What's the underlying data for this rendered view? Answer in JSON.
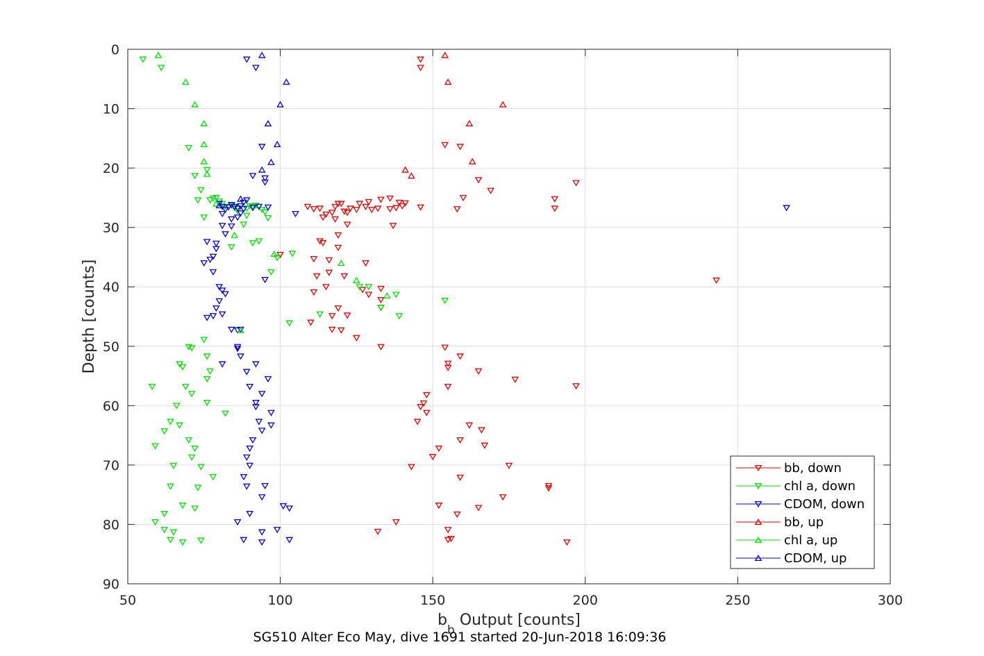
{
  "chart_data": {
    "type": "scatter",
    "title": "",
    "caption": "SG510 Alter Eco May, dive 1691 started 20-Jun-2018 16:09:36",
    "xlabel_main": "b",
    "xlabel_sub": "b",
    "xlabel_rest": " Output [counts]",
    "ylabel": "Depth [counts]",
    "xlim": [
      50,
      300
    ],
    "ylim": [
      0,
      90
    ],
    "y_reversed": true,
    "grid": true,
    "xticks": [
      "50",
      "100",
      "150",
      "200",
      "250",
      "300"
    ],
    "yticks": [
      "0",
      "10",
      "20",
      "30",
      "40",
      "50",
      "60",
      "70",
      "80",
      "90"
    ],
    "legend_position": "bottom-right",
    "colors": {
      "red": "#dd0000",
      "green": "#00dd00",
      "blue": "#0000cc"
    },
    "series": [
      {
        "name": "bb, down",
        "marker": "down-triangle",
        "color": "#dd0000",
        "points": [
          [
            146,
            1.7
          ],
          [
            146,
            3.1
          ],
          [
            154,
            16.1
          ],
          [
            159,
            16.4
          ],
          [
            165,
            22
          ],
          [
            169,
            23.8
          ],
          [
            160,
            25
          ],
          [
            158,
            26.9
          ],
          [
            197,
            22.5
          ],
          [
            190,
            25.2
          ],
          [
            190,
            26.8
          ],
          [
            146,
            26.6
          ],
          [
            140,
            26.4
          ],
          [
            141,
            25.9
          ],
          [
            139,
            25.8
          ],
          [
            138,
            26.7
          ],
          [
            136,
            26.9
          ],
          [
            136,
            25.1
          ],
          [
            133,
            25.3
          ],
          [
            132,
            26.8
          ],
          [
            130,
            27
          ],
          [
            129,
            25.7
          ],
          [
            128,
            26.5
          ],
          [
            126,
            26
          ],
          [
            125,
            27
          ],
          [
            123,
            26.8
          ],
          [
            122,
            27.5
          ],
          [
            121,
            27.3
          ],
          [
            120,
            26
          ],
          [
            119,
            26
          ],
          [
            118,
            26.5
          ],
          [
            117,
            27.5
          ],
          [
            115,
            27.8
          ],
          [
            114,
            28.3
          ],
          [
            113,
            26.8
          ],
          [
            111,
            26.9
          ],
          [
            109,
            26.5
          ],
          [
            118,
            28.6
          ],
          [
            122,
            29.5
          ],
          [
            119,
            31.3
          ],
          [
            137,
            29.7
          ],
          [
            113,
            32.3
          ],
          [
            114,
            32.6
          ],
          [
            119,
            33.4
          ],
          [
            100,
            34.6
          ],
          [
            111,
            35.3
          ],
          [
            116,
            35.5
          ],
          [
            128,
            36
          ],
          [
            112,
            38.2
          ],
          [
            116,
            37.6
          ],
          [
            121,
            38.2
          ],
          [
            115,
            40
          ],
          [
            111,
            40.9
          ],
          [
            127,
            40.5
          ],
          [
            133,
            40.3
          ],
          [
            129,
            41.3
          ],
          [
            133,
            42.2
          ],
          [
            133,
            43.5
          ],
          [
            119,
            43.6
          ],
          [
            117,
            44.9
          ],
          [
            122,
            44.8
          ],
          [
            110,
            46
          ],
          [
            117,
            47.2
          ],
          [
            120,
            47.3
          ],
          [
            125,
            48.6
          ],
          [
            133,
            50.1
          ],
          [
            154,
            50.2
          ],
          [
            159,
            51.7
          ],
          [
            155,
            52.9
          ],
          [
            155,
            53.6
          ],
          [
            165,
            54.2
          ],
          [
            177,
            55.6
          ],
          [
            197,
            56.7
          ],
          [
            155,
            56.8
          ],
          [
            148,
            58.2
          ],
          [
            147,
            59.6
          ],
          [
            146,
            60.2
          ],
          [
            148,
            61.2
          ],
          [
            145,
            62.7
          ],
          [
            162,
            63.3
          ],
          [
            166,
            64.1
          ],
          [
            159,
            65.8
          ],
          [
            152,
            67.2
          ],
          [
            167,
            66.7
          ],
          [
            150,
            68.6
          ],
          [
            175,
            70.1
          ],
          [
            143,
            70.3
          ],
          [
            159,
            72.1
          ],
          [
            188,
            73.5
          ],
          [
            188,
            73.9
          ],
          [
            173,
            75.4
          ],
          [
            152,
            76.8
          ],
          [
            165,
            77.2
          ],
          [
            158,
            78.3
          ],
          [
            138,
            79.6
          ],
          [
            155,
            80.9
          ],
          [
            132,
            81.2
          ],
          [
            156,
            82.4
          ],
          [
            155,
            82.6
          ],
          [
            194,
            83
          ],
          [
            243,
            38.9
          ]
        ]
      },
      {
        "name": "chl a, down",
        "marker": "down-triangle",
        "color": "#00dd00",
        "points": [
          [
            55,
            1.7
          ],
          [
            61,
            3.1
          ],
          [
            70,
            16.6
          ],
          [
            76,
            20.3
          ],
          [
            72,
            21.3
          ],
          [
            74,
            23.7
          ],
          [
            73,
            25.4
          ],
          [
            77,
            25.4
          ],
          [
            78,
            25.1
          ],
          [
            79,
            25
          ],
          [
            80,
            25.6
          ],
          [
            81,
            26
          ],
          [
            82,
            26.5
          ],
          [
            84,
            26.3
          ],
          [
            85,
            26.7
          ],
          [
            86,
            27.2
          ],
          [
            87,
            26.4
          ],
          [
            89,
            26.8
          ],
          [
            90,
            26.4
          ],
          [
            91,
            26.5
          ],
          [
            92,
            26.3
          ],
          [
            94,
            27
          ],
          [
            95,
            27.4
          ],
          [
            96,
            28.4
          ],
          [
            89,
            28
          ],
          [
            88,
            29.5
          ],
          [
            75,
            28.3
          ],
          [
            91,
            32.6
          ],
          [
            93,
            32.3
          ],
          [
            84,
            33.3
          ],
          [
            99,
            35.1
          ],
          [
            104,
            34.4
          ],
          [
            97,
            37.5
          ],
          [
            103,
            46.1
          ],
          [
            75,
            48.9
          ],
          [
            70,
            50.1
          ],
          [
            71,
            50.3
          ],
          [
            76,
            51.7
          ],
          [
            67,
            53
          ],
          [
            68,
            53.5
          ],
          [
            77,
            54.2
          ],
          [
            76,
            55.5
          ],
          [
            58,
            56.8
          ],
          [
            69,
            56.8
          ],
          [
            71,
            58
          ],
          [
            76,
            59.5
          ],
          [
            66,
            60
          ],
          [
            82,
            61.3
          ],
          [
            64,
            62.7
          ],
          [
            62,
            64.3
          ],
          [
            67,
            63.3
          ],
          [
            70,
            65.8
          ],
          [
            59,
            66.8
          ],
          [
            72,
            67.2
          ],
          [
            71,
            68.7
          ],
          [
            74,
            70.3
          ],
          [
            65,
            70.1
          ],
          [
            78,
            72
          ],
          [
            64,
            73.6
          ],
          [
            73,
            73.8
          ],
          [
            68,
            76.8
          ],
          [
            72,
            77.3
          ],
          [
            62,
            78.2
          ],
          [
            59,
            79.6
          ],
          [
            62,
            80.9
          ],
          [
            65,
            81.3
          ],
          [
            64,
            82.6
          ],
          [
            68,
            83
          ],
          [
            74,
            82.7
          ],
          [
            129,
            40
          ],
          [
            138,
            41.3
          ],
          [
            133,
            43.5
          ],
          [
            139,
            44.9
          ],
          [
            154,
            42.3
          ],
          [
            113,
            44.6
          ],
          [
            126,
            40
          ]
        ]
      },
      {
        "name": "CDOM, down",
        "marker": "down-triangle",
        "color": "#0000cc",
        "points": [
          [
            89,
            1.7
          ],
          [
            92,
            3.1
          ],
          [
            94,
            16.4
          ],
          [
            95,
            21.7
          ],
          [
            95,
            22.4
          ],
          [
            91,
            21.3
          ],
          [
            80,
            26
          ],
          [
            81,
            26.5
          ],
          [
            82,
            27
          ],
          [
            83,
            26.6
          ],
          [
            84,
            26.2
          ],
          [
            85,
            26.5
          ],
          [
            86,
            26.8
          ],
          [
            87,
            26.4
          ],
          [
            88,
            25.8
          ],
          [
            89,
            25.4
          ],
          [
            88,
            26.9
          ],
          [
            87,
            27.6
          ],
          [
            86,
            28.3
          ],
          [
            84,
            28.6
          ],
          [
            81,
            27.7
          ],
          [
            91,
            26.7
          ],
          [
            93,
            26.5
          ],
          [
            96,
            26.6
          ],
          [
            84,
            29.8
          ],
          [
            81,
            29.7
          ],
          [
            82,
            31.1
          ],
          [
            105,
            27.7
          ],
          [
            266,
            26.7
          ],
          [
            79,
            32.7
          ],
          [
            76,
            32.4
          ],
          [
            79,
            33.6
          ],
          [
            78,
            34.9
          ],
          [
            77,
            35.4
          ],
          [
            75,
            36
          ],
          [
            78,
            37.5
          ],
          [
            95,
            38.8
          ],
          [
            80,
            40
          ],
          [
            81,
            40.6
          ],
          [
            82,
            41.2
          ],
          [
            80,
            42.4
          ],
          [
            79,
            43.6
          ],
          [
            78,
            44.9
          ],
          [
            76,
            45.2
          ],
          [
            81,
            44.6
          ],
          [
            84,
            47.2
          ],
          [
            86,
            47.3
          ],
          [
            87,
            47.2
          ],
          [
            86,
            50.1
          ],
          [
            86,
            50.4
          ],
          [
            87,
            51.7
          ],
          [
            81,
            53
          ],
          [
            89,
            54.3
          ],
          [
            92,
            53
          ],
          [
            90,
            56.8
          ],
          [
            96,
            55.5
          ],
          [
            94,
            58
          ],
          [
            92,
            59.5
          ],
          [
            92,
            60.2
          ],
          [
            97,
            61.2
          ],
          [
            93,
            62.7
          ],
          [
            97,
            63.3
          ],
          [
            94,
            64.2
          ],
          [
            91,
            65.8
          ],
          [
            90,
            67.2
          ],
          [
            89,
            68.7
          ],
          [
            90,
            70.1
          ],
          [
            88,
            72
          ],
          [
            89,
            73.6
          ],
          [
            95,
            73.5
          ],
          [
            94,
            75.4
          ],
          [
            101,
            76.9
          ],
          [
            103,
            77.3
          ],
          [
            90,
            78.2
          ],
          [
            86,
            79.6
          ],
          [
            94,
            81.3
          ],
          [
            99,
            80.9
          ],
          [
            88,
            82.6
          ],
          [
            94,
            83
          ],
          [
            103,
            82.6
          ]
        ]
      },
      {
        "name": "bb, up",
        "marker": "up-triangle",
        "color": "#dd0000",
        "points": [
          [
            154,
            1
          ],
          [
            155,
            5.5
          ],
          [
            173,
            9.3
          ],
          [
            162,
            12.5
          ],
          [
            163,
            18.9
          ],
          [
            141,
            20.3
          ],
          [
            143,
            21.3
          ]
        ]
      },
      {
        "name": "chl a, up",
        "marker": "up-triangle",
        "color": "#00dd00",
        "points": [
          [
            60,
            1
          ],
          [
            69,
            5.5
          ],
          [
            72,
            9.3
          ],
          [
            75,
            12.5
          ],
          [
            75,
            16
          ],
          [
            75,
            18.9
          ],
          [
            76,
            21
          ],
          [
            79,
            26
          ],
          [
            85,
            31.3
          ],
          [
            98,
            34.5
          ],
          [
            120,
            36
          ],
          [
            125,
            38.9
          ],
          [
            135,
            41.5
          ],
          [
            87,
            47.3
          ]
        ]
      },
      {
        "name": "CDOM, up",
        "marker": "up-triangle",
        "color": "#0000cc",
        "points": [
          [
            94,
            1
          ],
          [
            102,
            5.5
          ],
          [
            100,
            9.3
          ],
          [
            96,
            12.5
          ],
          [
            99,
            16
          ],
          [
            97,
            19
          ],
          [
            94,
            20.3
          ],
          [
            87,
            25.2
          ],
          [
            80,
            26.3
          ]
        ]
      }
    ]
  }
}
